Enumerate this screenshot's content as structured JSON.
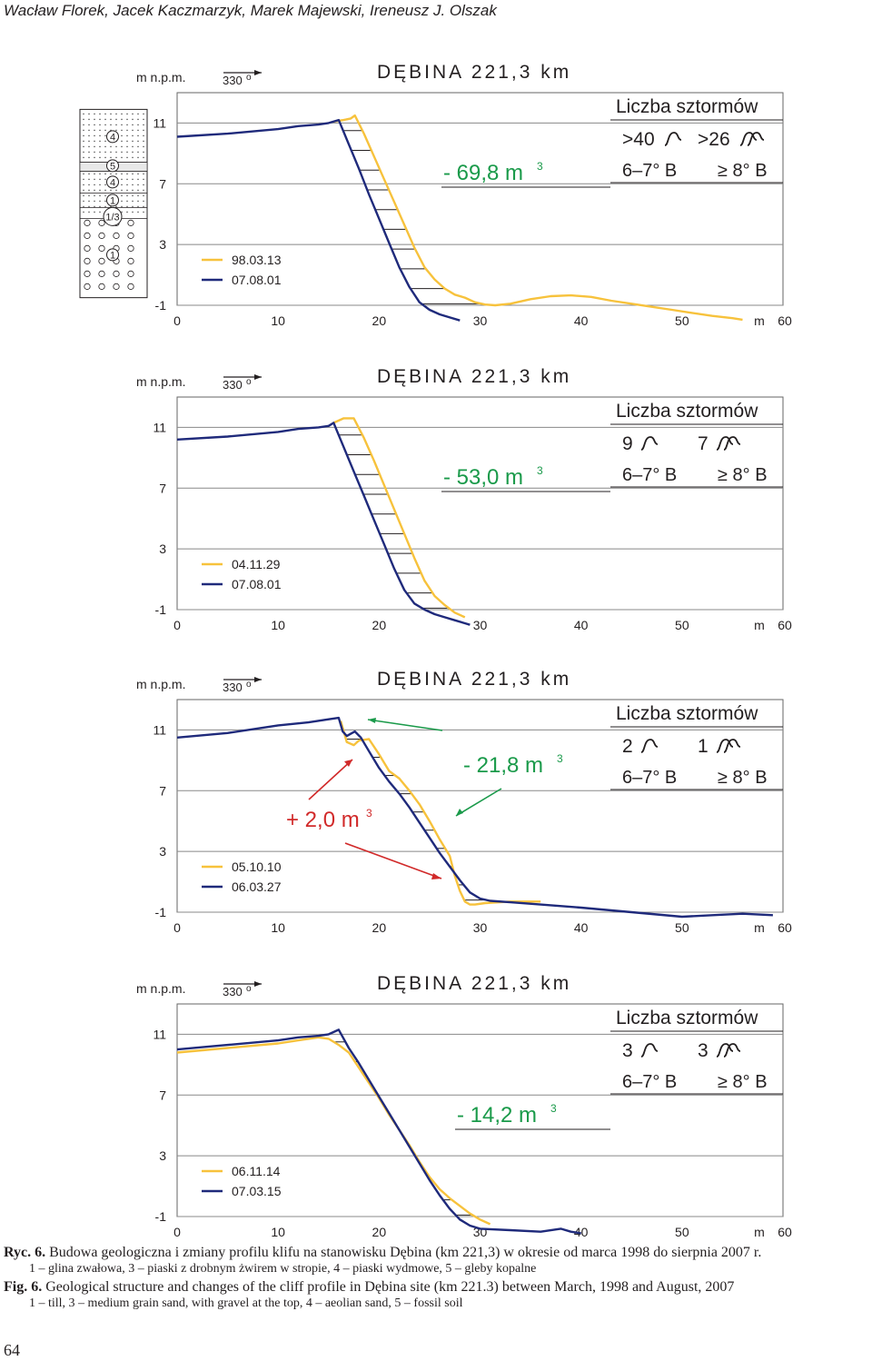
{
  "header": {
    "authors": "Wacław Florek, Jacek Kaczmarzyk, Marek Majewski, Ireneusz J. Olszak"
  },
  "colors": {
    "line_a": "#f7c23c",
    "line_b": "#1f2a7b",
    "green": "#1a9a4a",
    "red": "#d12a2a",
    "grid": "#333333"
  },
  "common": {
    "y_unit": "m n.p.m.",
    "direction": "330",
    "direction_deg": "o",
    "storm_title": "Liczba sztormów",
    "storm_class_1": "6–7° B",
    "storm_class_2": "≥ 8° B",
    "x_unit": "m",
    "cubic": "3"
  },
  "chart_data": [
    {
      "type": "line",
      "title": "DĘBINA 221,3 km",
      "xlabel": "m",
      "ylabel": "m n.p.m.",
      "xlim": [
        0,
        60
      ],
      "ylim": [
        -1,
        13
      ],
      "x_ticks": [
        "0",
        "10",
        "20",
        "30",
        "40",
        "50",
        "60"
      ],
      "y_ticks": [
        "-1",
        "3",
        "7",
        "11"
      ],
      "volume_change": "- 69,8 m",
      "volume_color": "green",
      "storms_a": ">40",
      "storms_b": ">26",
      "series": [
        {
          "name": "98.03.13",
          "color": "line_a",
          "x": [
            15.5,
            16.5,
            17.2,
            17.6,
            18.5,
            19.5,
            20.5,
            21.5,
            22.5,
            23.5,
            24.5,
            25.5,
            26.5,
            27.5,
            28.5,
            29.5,
            30.5,
            31.5,
            33,
            35,
            37,
            39,
            41,
            43,
            45,
            47,
            49,
            51,
            53,
            55,
            56
          ],
          "y": [
            11.1,
            11.2,
            11.3,
            11.5,
            10.3,
            8.8,
            7.3,
            5.8,
            4.3,
            2.8,
            1.5,
            0.7,
            0.1,
            -0.3,
            -0.5,
            -0.8,
            -0.95,
            -1.0,
            -0.9,
            -0.6,
            -0.4,
            -0.35,
            -0.45,
            -0.7,
            -0.9,
            -1.1,
            -1.3,
            -1.5,
            -1.7,
            -1.85,
            -1.95
          ]
        },
        {
          "name": "07.08.01",
          "color": "line_b",
          "x": [
            0,
            5,
            10,
            12,
            14,
            15,
            16,
            17,
            18,
            19,
            20,
            21,
            22,
            23,
            24,
            25,
            26,
            27,
            28
          ],
          "y": [
            10.1,
            10.3,
            10.6,
            10.8,
            10.9,
            11.0,
            11.2,
            9.6,
            8.0,
            6.3,
            4.7,
            3.1,
            1.5,
            0.2,
            -0.8,
            -1.3,
            -1.6,
            -1.8,
            -2.0
          ]
        }
      ]
    },
    {
      "type": "line",
      "title": "DĘBINA 221,3 km",
      "xlabel": "m",
      "ylabel": "m n.p.m.",
      "xlim": [
        0,
        60
      ],
      "ylim": [
        -1,
        13
      ],
      "x_ticks": [
        "0",
        "10",
        "20",
        "30",
        "40",
        "50",
        "60"
      ],
      "y_ticks": [
        "-1",
        "3",
        "7",
        "11"
      ],
      "volume_change": "- 53,0 m",
      "volume_color": "green",
      "storms_a": "9",
      "storms_b": "7",
      "series": [
        {
          "name": "04.11.29",
          "color": "line_a",
          "x": [
            15.5,
            16.5,
            17.5,
            18.5,
            19.5,
            20.5,
            21.5,
            22.5,
            23.5,
            24.5,
            25.5,
            26.5,
            27.5,
            28.5
          ],
          "y": [
            11.3,
            11.6,
            11.6,
            10.3,
            8.8,
            7.2,
            5.6,
            4.0,
            2.4,
            0.9,
            -0.1,
            -0.7,
            -1.2,
            -1.5
          ]
        },
        {
          "name": "07.08.01",
          "color": "line_b",
          "x": [
            0,
            5,
            10,
            12,
            14,
            15,
            15.5,
            16.5,
            17.5,
            18.5,
            19.5,
            20.5,
            21.5,
            22.5,
            23.5,
            24.5,
            25.5,
            26.5,
            27.5,
            28.5,
            29
          ],
          "y": [
            10.2,
            10.4,
            10.7,
            10.9,
            11.0,
            11.1,
            11.3,
            9.7,
            8.1,
            6.5,
            4.9,
            3.3,
            1.7,
            0.3,
            -0.6,
            -1.0,
            -1.3,
            -1.5,
            -1.7,
            -1.9,
            -2.0
          ]
        }
      ]
    },
    {
      "type": "line",
      "title": "DĘBINA 221,3 km",
      "xlabel": "m",
      "ylabel": "m n.p.m.",
      "xlim": [
        0,
        60
      ],
      "ylim": [
        -1,
        13
      ],
      "x_ticks": [
        "0",
        "10",
        "20",
        "30",
        "40",
        "50",
        "60"
      ],
      "y_ticks": [
        "-1",
        "3",
        "7",
        "11"
      ],
      "volume_change": "- 21,8 m",
      "volume_color": "green",
      "accretion": "+ 2,0 m",
      "accretion_color": "red",
      "storms_a": "2",
      "storms_b": "1",
      "series": [
        {
          "name": "05.10.10",
          "color": "line_a",
          "x": [
            16.2,
            16.8,
            17.5,
            18,
            19,
            20,
            21,
            22,
            23,
            24,
            25,
            26,
            27,
            27.5,
            28,
            28.5,
            29,
            29.5,
            30.5,
            33,
            36
          ],
          "y": [
            11.6,
            10.2,
            10.0,
            10.3,
            10.4,
            9.4,
            8.3,
            7.8,
            7.0,
            6.1,
            5.0,
            3.8,
            2.7,
            1.4,
            0.4,
            -0.3,
            -0.5,
            -0.5,
            -0.4,
            -0.3,
            -0.3
          ]
        },
        {
          "name": "06.03.27",
          "color": "line_b",
          "x": [
            0,
            5,
            10,
            13,
            15,
            16,
            16.4,
            16.8,
            17.6,
            18.2,
            19,
            20,
            21,
            22,
            23,
            24,
            25,
            26,
            27,
            28,
            29,
            30,
            31,
            33,
            36,
            40,
            45,
            50,
            53,
            56,
            59
          ],
          "y": [
            10.5,
            10.8,
            11.3,
            11.5,
            11.7,
            11.8,
            10.9,
            10.6,
            10.9,
            10.5,
            9.6,
            8.5,
            7.6,
            6.8,
            5.9,
            4.9,
            3.9,
            2.9,
            2.0,
            1.1,
            0.3,
            -0.1,
            -0.25,
            -0.35,
            -0.5,
            -0.7,
            -1.0,
            -1.3,
            -1.2,
            -1.1,
            -1.2
          ]
        }
      ]
    },
    {
      "type": "line",
      "title": "DĘBINA 221,3 km",
      "xlabel": "m",
      "ylabel": "m n.p.m.",
      "xlim": [
        0,
        60
      ],
      "ylim": [
        -1,
        13
      ],
      "x_ticks": [
        "0",
        "10",
        "20",
        "30",
        "40",
        "50",
        "60"
      ],
      "y_ticks": [
        "-1",
        "3",
        "7",
        "11"
      ],
      "volume_change": "- 14,2 m",
      "volume_color": "green",
      "storms_a": "3",
      "storms_b": "3",
      "series": [
        {
          "name": "06.11.14",
          "color": "line_a",
          "x": [
            0,
            5,
            10,
            12,
            14,
            15,
            16,
            17,
            18,
            19,
            20,
            21,
            22,
            23,
            24,
            25,
            26,
            27,
            28,
            29,
            30,
            31
          ],
          "y": [
            9.8,
            10.1,
            10.4,
            10.6,
            10.8,
            10.7,
            10.3,
            9.8,
            8.8,
            7.8,
            6.8,
            5.7,
            4.7,
            3.7,
            2.6,
            1.6,
            0.8,
            0.2,
            -0.3,
            -0.8,
            -1.2,
            -1.5
          ]
        },
        {
          "name": "07.03.15",
          "color": "line_b",
          "x": [
            0,
            5,
            10,
            12,
            14,
            15,
            16,
            17,
            18,
            19,
            20,
            21,
            22,
            23,
            24,
            25,
            26,
            27,
            28,
            29,
            30,
            33,
            36,
            38,
            39,
            40
          ],
          "y": [
            10.0,
            10.3,
            10.6,
            10.8,
            10.9,
            11.0,
            11.3,
            10.1,
            9.1,
            8.0,
            6.9,
            5.8,
            4.7,
            3.6,
            2.5,
            1.4,
            0.4,
            -0.5,
            -1.2,
            -1.6,
            -1.8,
            -1.9,
            -2.0,
            -1.8,
            -2.0,
            -2.1
          ]
        }
      ]
    }
  ],
  "geology": {
    "labels": [
      "4",
      "5",
      "4",
      "1",
      "1/3",
      "1"
    ]
  },
  "caption": {
    "pl_label": "Ryc. 6.",
    "pl_text": "Budowa geologiczna i zmiany profilu klifu na stanowisku Dębina (km 221,3) w okresie od marca 1998 do sierpnia 2007 r.",
    "pl_legend": "1 – glina zwałowa, 3 – piaski z drobnym żwirem w stropie, 4 – piaski wydmowe, 5 – gleby kopalne",
    "en_label": "Fig. 6.",
    "en_text": "Geological structure and changes of the cliff profile in Dębina site (km 221.3) between March, 1998 and August, 2007",
    "en_legend": "1 – till, 3 – medium grain sand, with gravel at the top, 4 – aeolian sand, 5 – fossil soil"
  },
  "page_number": "64"
}
